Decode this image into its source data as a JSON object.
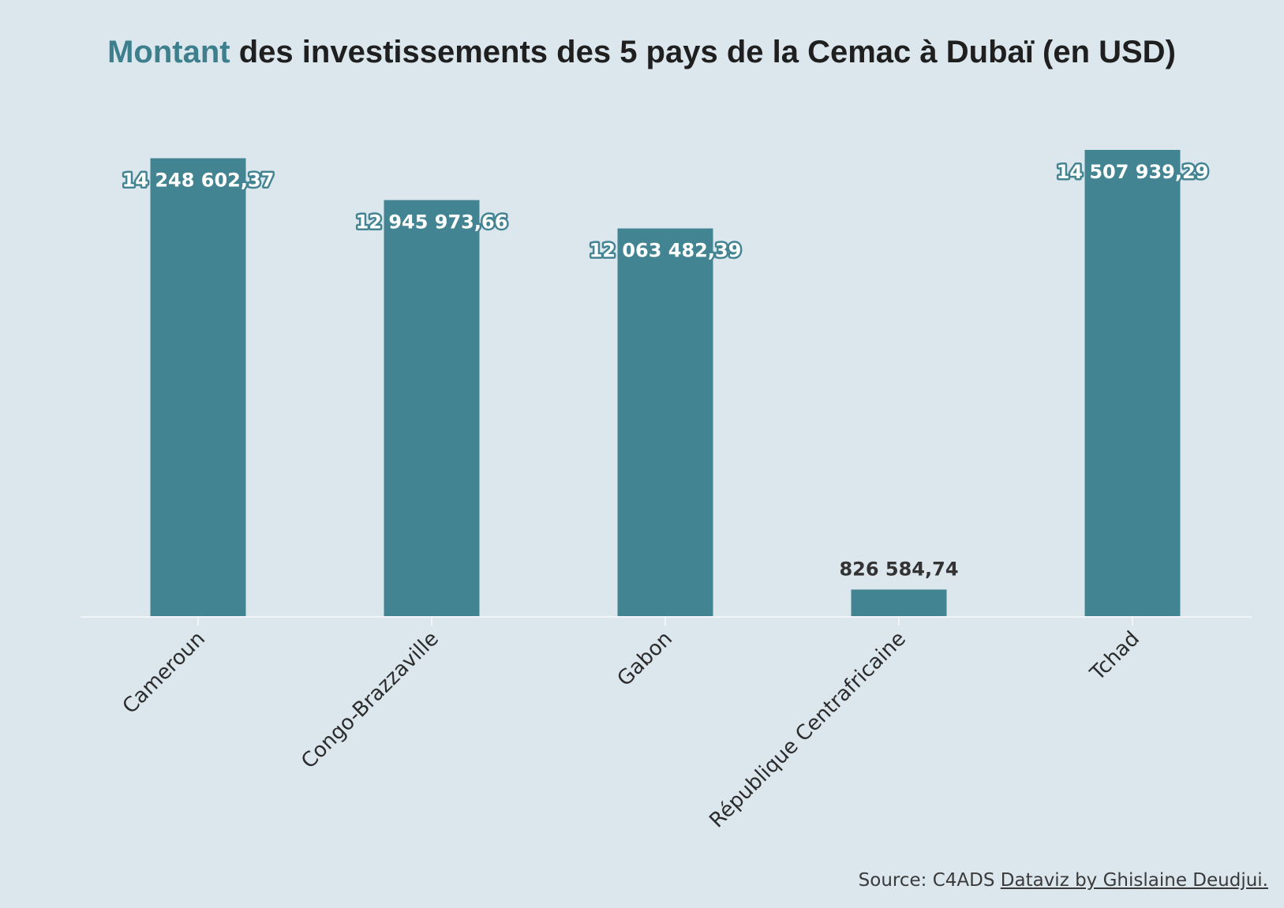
{
  "colors": {
    "background": "#dbe7ed",
    "bar": "#438493",
    "title_accent": "#3e7f8e",
    "title_text": "#1f1f1f",
    "axis": "#f2f5f7",
    "label_dark": "#333333",
    "label_light": "#ffffff"
  },
  "title": {
    "accent": "Montant",
    "rest": " des investissements des 5 pays de la Cemac à Dubaï (en USD)"
  },
  "source": {
    "prefix": "Source: C4ADS ",
    "link": "Dataviz by Ghislaine Deudjui."
  },
  "chart_data": {
    "type": "bar",
    "title": "Montant des investissements des 5 pays de la Cemac à Dubaï (en USD)",
    "xlabel": "",
    "ylabel": "",
    "categories": [
      "Cameroun",
      "Congo-Brazzaville",
      "Gabon",
      "République Centrafricaine",
      "Tchad"
    ],
    "values": [
      14248602.37,
      12945973.66,
      12063482.39,
      826584.74,
      14507939.29
    ],
    "value_labels": [
      "14 248 602,37",
      "12 945 973,66",
      "12 063 482,39",
      "826 584,74",
      "14 507 939,29"
    ],
    "ylim": [
      0,
      14507939.29
    ],
    "grid": false,
    "legend": "none"
  }
}
